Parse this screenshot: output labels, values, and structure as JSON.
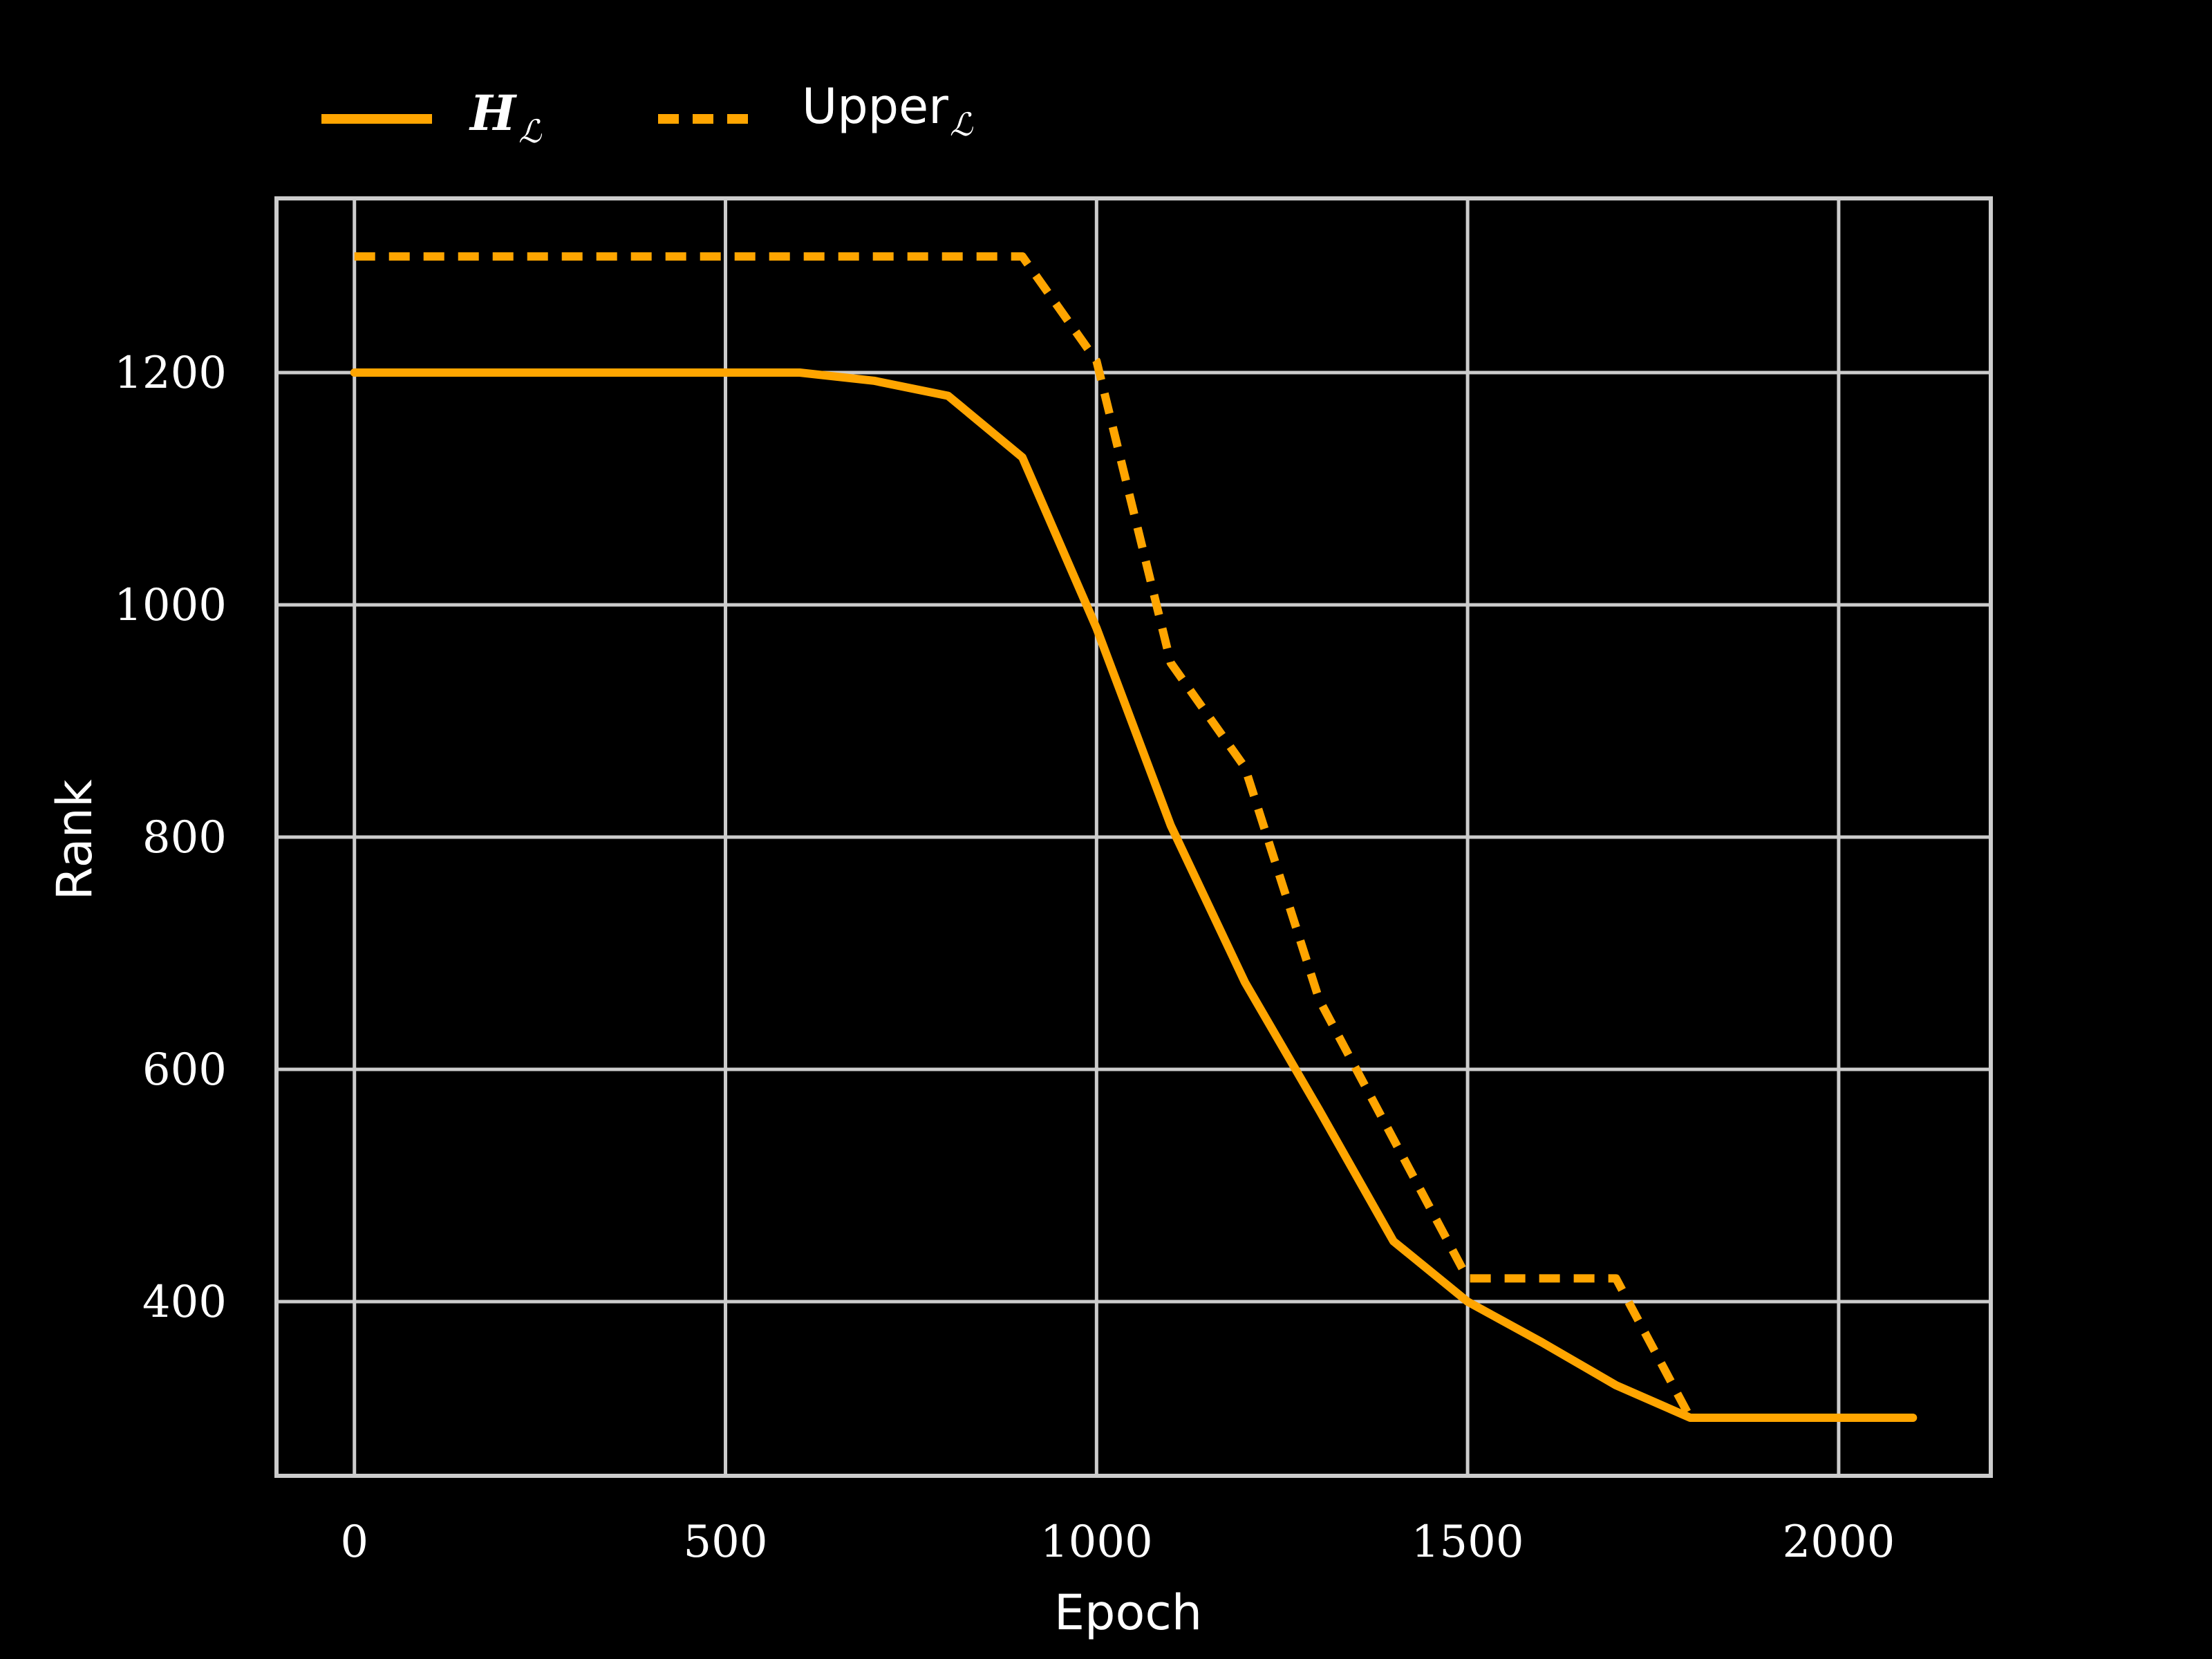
{
  "chart_data": {
    "type": "line",
    "xlabel": "Epoch",
    "ylabel": "Rank",
    "xlim": [
      -105,
      2205
    ],
    "ylim": [
      250,
      1350
    ],
    "xticks": [
      0,
      500,
      1000,
      1500,
      2000
    ],
    "yticks": [
      400,
      600,
      800,
      1000,
      1200
    ],
    "grid": true,
    "legend_position": "top-left-outside",
    "series": [
      {
        "name": "H",
        "subscript": "ℒ",
        "color": "#FFA500",
        "style": "solid",
        "x": [
          0,
          100,
          200,
          300,
          400,
          500,
          600,
          700,
          800,
          900,
          1000,
          1100,
          1200,
          1300,
          1400,
          1500,
          1600,
          1700,
          1800,
          1900,
          2000,
          2100
        ],
        "y": [
          1200,
          1200,
          1200,
          1200,
          1200,
          1200,
          1200,
          1193,
          1180,
          1127,
          980,
          810,
          675,
          565,
          452,
          400,
          365,
          328,
          300,
          300,
          300,
          300
        ]
      },
      {
        "name": "Upper",
        "subscript": "ℒ",
        "color": "#FFA500",
        "style": "dashed",
        "x": [
          0,
          100,
          200,
          300,
          400,
          500,
          600,
          700,
          800,
          900,
          1000,
          1100,
          1200,
          1300,
          1400,
          1500,
          1600,
          1700,
          1800
        ],
        "y": [
          1300,
          1300,
          1300,
          1300,
          1300,
          1300,
          1300,
          1300,
          1300,
          1300,
          1210,
          950,
          860,
          660,
          540,
          420,
          420,
          420,
          300
        ]
      }
    ]
  }
}
